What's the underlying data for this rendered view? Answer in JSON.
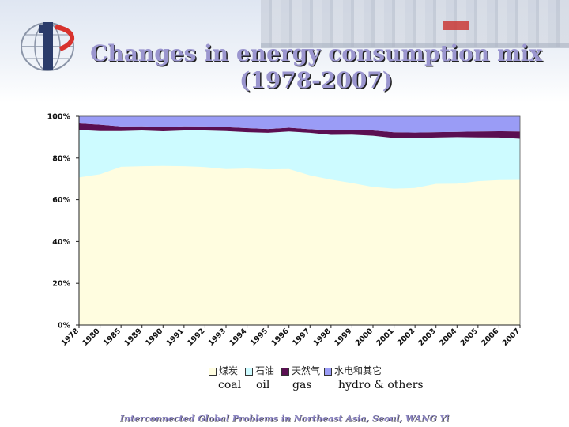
{
  "header": {
    "title_line1": "Changes in energy consumption mix",
    "title_line2": "(1978-2007)"
  },
  "footer": {
    "text": "Interconnected Global Problems in Northeast Asia, Seoul, WANG Yi"
  },
  "colors": {
    "coal": "#fffde0",
    "oil": "#cdfbff",
    "gas": "#5a0f52",
    "hydro": "#9a9cf6",
    "plot_bg": "#fffde0"
  },
  "chart_data": {
    "type": "area",
    "stacked": true,
    "x": [
      "1978",
      "1980",
      "1985",
      "1989",
      "1990",
      "1991",
      "1992",
      "1993",
      "1994",
      "1995",
      "1996",
      "1997",
      "1998",
      "1999",
      "2000",
      "2001",
      "2002",
      "2003",
      "2004",
      "2005",
      "2006",
      "2007"
    ],
    "series": [
      {
        "name": "煤炭",
        "name_en": "coal",
        "values": [
          70.7,
          72.2,
          75.8,
          76.1,
          76.2,
          76.1,
          75.7,
          74.7,
          75.0,
          74.6,
          74.7,
          71.7,
          69.6,
          68.0,
          66.1,
          65.3,
          65.6,
          67.6,
          67.7,
          68.9,
          69.4,
          69.5
        ]
      },
      {
        "name": "石油",
        "name_en": "oil",
        "values": [
          22.7,
          20.7,
          17.1,
          17.1,
          16.6,
          17.1,
          17.5,
          18.2,
          17.4,
          17.5,
          18.0,
          20.4,
          21.5,
          23.2,
          24.6,
          24.3,
          24.0,
          22.2,
          22.3,
          21.0,
          20.4,
          19.7
        ]
      },
      {
        "name": "天然气",
        "name_en": "gas",
        "values": [
          3.2,
          3.1,
          2.2,
          2.0,
          2.1,
          2.0,
          1.9,
          1.9,
          1.9,
          1.8,
          1.8,
          1.7,
          2.2,
          2.2,
          2.5,
          2.7,
          2.6,
          2.6,
          2.5,
          2.8,
          3.0,
          3.5
        ]
      },
      {
        "name": "水电和其它",
        "name_en": "hydro & others",
        "values": [
          3.4,
          4.0,
          4.9,
          4.8,
          5.1,
          4.8,
          4.9,
          5.2,
          5.7,
          6.1,
          5.5,
          6.2,
          6.7,
          6.6,
          6.8,
          7.7,
          7.8,
          7.6,
          7.5,
          7.3,
          7.2,
          7.3
        ]
      }
    ],
    "y_ticks": [
      "0%",
      "20%",
      "40%",
      "60%",
      "80%",
      "100%"
    ],
    "ylim": [
      0,
      100
    ],
    "legend_position": "bottom",
    "grid": false
  }
}
